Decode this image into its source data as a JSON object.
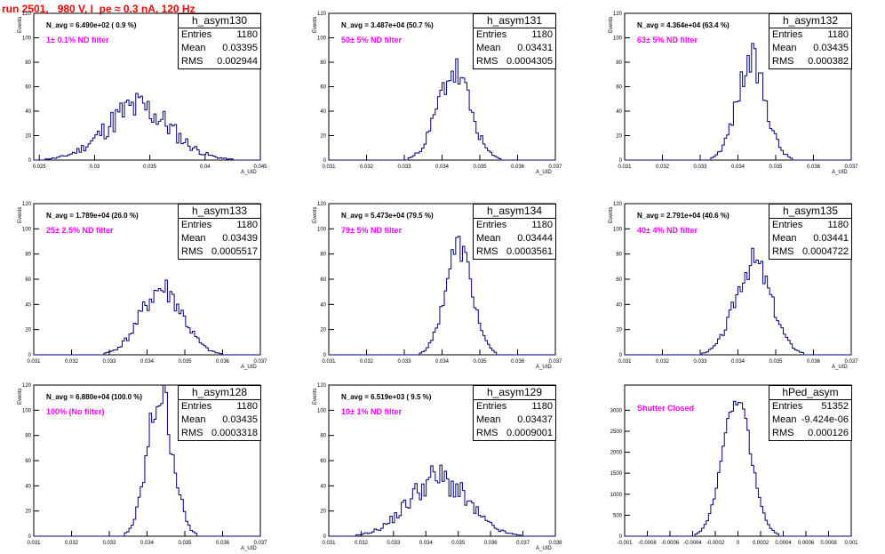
{
  "title": "run 2501,   980 V, I_pe ≈ 0.3 nA, 120 Hz",
  "colors": {
    "title": "#ff0000",
    "histogram": "#000080",
    "annotation": "#ff00ff"
  },
  "stats_labels": {
    "entries": "Entries",
    "mean": "Mean",
    "rms": "RMS"
  },
  "chart_data": [
    {
      "type": "bar",
      "name": "h_asym130",
      "entries": "1180",
      "mean": "0.03395",
      "rms": "0.002944",
      "n_avg": "N_avg = 6.490e+02 ( 0.9 %)",
      "filter_label": "1± 0.1% ND filter",
      "xlabel": "A_UID",
      "ylabel": "Events",
      "xlim": [
        0.0245,
        0.045
      ],
      "ylim": [
        0,
        120
      ],
      "xticks": [
        0.025,
        0.03,
        0.035,
        0.04,
        0.045
      ],
      "xtick_labels": [
        "0.025",
        "0.03",
        "0.035",
        "0.04",
        "0.045"
      ],
      "yticks": [
        0,
        20,
        40,
        60,
        80,
        100,
        120
      ],
      "peak": 43,
      "noise": 0.35,
      "seed": 11,
      "grid": false
    },
    {
      "type": "bar",
      "name": "h_asym131",
      "entries": "1180",
      "mean": "0.03431",
      "rms": "0.0004305",
      "n_avg": "N_avg = 3.487e+04 (50.7 %)",
      "filter_label": "50± 5% ND filter",
      "xlabel": "A_UID",
      "ylabel": "Events",
      "xlim": [
        0.031,
        0.037
      ],
      "ylim": [
        0,
        120
      ],
      "xticks": [
        0.031,
        0.032,
        0.033,
        0.034,
        0.035,
        0.036,
        0.037
      ],
      "xtick_labels": [
        "0.031",
        "0.032",
        "0.033",
        "0.034",
        "0.035",
        "0.036",
        "0.037"
      ],
      "yticks": [
        0,
        20,
        40,
        60,
        80,
        100,
        120
      ],
      "peak": 72,
      "noise": 0.22,
      "seed": 23,
      "grid": false
    },
    {
      "type": "bar",
      "name": "h_asym132",
      "entries": "1180",
      "mean": "0.03435",
      "rms": "0.000382",
      "n_avg": "N_avg = 4.364e+04 (63.4 %)",
      "filter_label": "63± 5% ND filter",
      "xlabel": "A_UID",
      "ylabel": "Events",
      "xlim": [
        0.031,
        0.037
      ],
      "ylim": [
        0,
        120
      ],
      "xticks": [
        0.031,
        0.032,
        0.033,
        0.034,
        0.035,
        0.036,
        0.037
      ],
      "xtick_labels": [
        "0.031",
        "0.032",
        "0.033",
        "0.034",
        "0.035",
        "0.036",
        "0.037"
      ],
      "yticks": [
        0,
        20,
        40,
        60,
        80,
        100,
        120
      ],
      "peak": 80,
      "noise": 0.2,
      "seed": 37,
      "grid": false
    },
    {
      "type": "bar",
      "name": "h_asym133",
      "entries": "1180",
      "mean": "0.03439",
      "rms": "0.0005517",
      "n_avg": "N_avg = 1.789e+04 (26.0 %)",
      "filter_label": "25± 2.5% ND filter",
      "xlabel": "A_UID",
      "ylabel": "Events",
      "xlim": [
        0.031,
        0.037
      ],
      "ylim": [
        0,
        120
      ],
      "xticks": [
        0.031,
        0.032,
        0.033,
        0.034,
        0.035,
        0.036,
        0.037
      ],
      "xtick_labels": [
        "0.031",
        "0.032",
        "0.033",
        "0.034",
        "0.035",
        "0.036",
        "0.037"
      ],
      "yticks": [
        0,
        20,
        40,
        60,
        80,
        100,
        120
      ],
      "peak": 52,
      "noise": 0.22,
      "seed": 41,
      "grid": false
    },
    {
      "type": "bar",
      "name": "h_asym134",
      "entries": "1180",
      "mean": "0.03444",
      "rms": "0.0003561",
      "n_avg": "N_avg = 5.473e+04 (79.5 %)",
      "filter_label": "79± 5% ND filter",
      "xlabel": "A_UID",
      "ylabel": "Events",
      "xlim": [
        0.031,
        0.037
      ],
      "ylim": [
        0,
        120
      ],
      "xticks": [
        0.031,
        0.032,
        0.033,
        0.034,
        0.035,
        0.036,
        0.037
      ],
      "xtick_labels": [
        "0.031",
        "0.032",
        "0.033",
        "0.034",
        "0.035",
        "0.036",
        "0.037"
      ],
      "yticks": [
        0,
        20,
        40,
        60,
        80,
        100,
        120
      ],
      "peak": 86,
      "noise": 0.14,
      "seed": 53,
      "grid": false
    },
    {
      "type": "bar",
      "name": "h_asym135",
      "entries": "1180",
      "mean": "0.03441",
      "rms": "0.0004722",
      "n_avg": "N_avg = 2.791e+04 (40.6 %)",
      "filter_label": "40± 4% ND filter",
      "xlabel": "A_UID",
      "ylabel": "Events",
      "xlim": [
        0.031,
        0.037
      ],
      "ylim": [
        0,
        120
      ],
      "xticks": [
        0.031,
        0.032,
        0.033,
        0.034,
        0.035,
        0.036,
        0.037
      ],
      "xtick_labels": [
        "0.031",
        "0.032",
        "0.033",
        "0.034",
        "0.035",
        "0.036",
        "0.037"
      ],
      "yticks": [
        0,
        20,
        40,
        60,
        80,
        100,
        120
      ],
      "peak": 74,
      "noise": 0.16,
      "seed": 67,
      "grid": false
    },
    {
      "type": "bar",
      "name": "h_asym128",
      "entries": "1180",
      "mean": "0.03435",
      "rms": "0.0003318",
      "n_avg": "N_avg = 6.880e+04 (100.0 %)",
      "filter_label": "100% (No filter)",
      "xlabel": "A_UID",
      "ylabel": "Events",
      "xlim": [
        0.031,
        0.037
      ],
      "ylim": [
        0,
        120
      ],
      "xticks": [
        0.031,
        0.032,
        0.033,
        0.034,
        0.035,
        0.036,
        0.037
      ],
      "xtick_labels": [
        "0.031",
        "0.032",
        "0.033",
        "0.034",
        "0.035",
        "0.036",
        "0.037"
      ],
      "yticks": [
        0,
        20,
        40,
        60,
        80,
        100,
        120
      ],
      "peak": 114,
      "noise": 0.2,
      "seed": 79,
      "grid": false
    },
    {
      "type": "bar",
      "name": "h_asym129",
      "entries": "1180",
      "mean": "0.03437",
      "rms": "0.0009001",
      "n_avg": "N_avg = 6.519e+03 ( 9.5 %)",
      "filter_label": "10± 1% ND filter",
      "xlabel": "A_UID",
      "ylabel": "Events",
      "xlim": [
        0.031,
        0.038
      ],
      "ylim": [
        0,
        120
      ],
      "xticks": [
        0.031,
        0.032,
        0.033,
        0.034,
        0.035,
        0.036,
        0.037,
        0.038
      ],
      "xtick_labels": [
        "0.031",
        "0.032",
        "0.033",
        "0.034",
        "0.035",
        "0.036",
        "0.037",
        "0.038"
      ],
      "yticks": [
        0,
        20,
        40,
        60,
        80,
        100,
        120
      ],
      "peak": 46,
      "noise": 0.28,
      "seed": 91,
      "grid": false
    },
    {
      "type": "bar",
      "name": "hPed_asym",
      "entries": "51352",
      "mean": "-9.424e-06",
      "rms": "0.000126",
      "n_avg": "",
      "filter_label": "Shutter Closed",
      "xlabel": "",
      "ylabel": "",
      "xlim": [
        -0.001,
        0.001
      ],
      "ylim": [
        0,
        3600
      ],
      "xticks": [
        -0.001,
        -0.0008,
        -0.0006,
        -0.0004,
        -0.0002,
        0,
        0.0002,
        0.0004,
        0.0006,
        0.0008,
        0.001
      ],
      "xtick_labels": [
        "-0.001",
        "-0.0008",
        "-0.0006",
        "-0.0004",
        "-0.0002",
        "0",
        "0.0002",
        "0.0004",
        "0.0006",
        "0.0008",
        "0.001"
      ],
      "yticks": [
        0,
        500,
        1000,
        1500,
        2000,
        2500,
        3000
      ],
      "peak": 3270,
      "noise": 0.06,
      "seed": 103,
      "grid": false
    }
  ]
}
